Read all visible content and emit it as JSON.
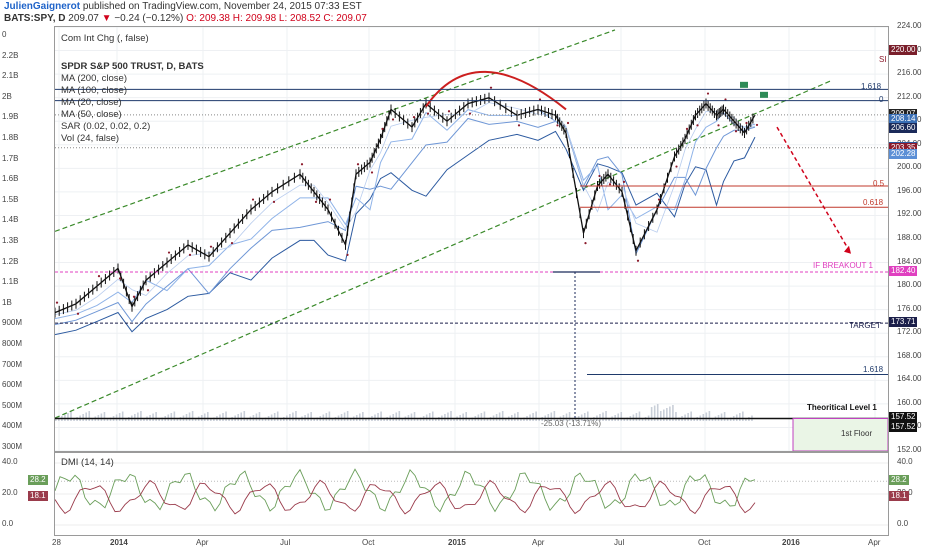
{
  "header": {
    "author": "JulienGaignerot",
    "published": "published on TradingView.com, November 24, 2015 07:33 EST",
    "symbol": "BATS:SPY, D",
    "last": "209.07",
    "change_arrow": "▼",
    "change": "−0.24 (−0.12%)",
    "o": "O: 209.38",
    "h": "H: 209.98",
    "l": "L: 208.52",
    "c": "C: 209.07"
  },
  "legend": {
    "top_indicator": "Com Int Chg (, false)",
    "title": "SPDR S&P 500 TRUST, D, BATS",
    "ma200": "MA (200, close)",
    "ma100": "MA (100, close)",
    "ma20": "MA (20, close)",
    "ma50": "MA (50, close)",
    "sar": "SAR (0.02, 0.02, 0.2)",
    "vol": "Vol (24, false)",
    "dmi": "DMI (14, 14)"
  },
  "annotations": {
    "fib_1618_top": "1.618",
    "fib_0": "0",
    "fib_05": "0.5",
    "fib_0618": "0.618",
    "if_breakout": "IF BREAKOUT",
    "if_breakout_1": "1",
    "target": "TARGET",
    "fib_1618_low": "1.618",
    "theoretical": "Theoritical Level",
    "theoretical_1": "1",
    "measure": "-25.03 (-13.71%)",
    "floor": "1st Floor",
    "si": "SI"
  },
  "price_tags": [
    {
      "label": "220.00",
      "price": 220.0,
      "color": "#7a1f2b"
    },
    {
      "label": "209.07",
      "price": 209.07,
      "color": "#222222"
    },
    {
      "label": "208.14",
      "price": 208.14,
      "color": "#3a6fb5"
    },
    {
      "label": "206.60",
      "price": 206.6,
      "color": "#1b2a5a"
    },
    {
      "label": "203.50",
      "price": 203.5,
      "color": "#2c5aa0"
    },
    {
      "label": "203.35",
      "price": 203.35,
      "color": "#8b1a2b"
    },
    {
      "label": "202.28",
      "price": 202.28,
      "color": "#5b8fd6"
    },
    {
      "label": "182.40",
      "price": 182.4,
      "color": "#e040c0"
    },
    {
      "label": "173.71",
      "price": 173.71,
      "color": "#1b1f4a"
    },
    {
      "label": "157.52",
      "price": 157.52,
      "color": "#111111"
    },
    {
      "label": "157.52",
      "price": 157.52,
      "color": "#111111",
      "offset": 1
    }
  ],
  "osc_tags": [
    {
      "label": "28.2",
      "value": 28.2,
      "color": "#6a9e5a"
    },
    {
      "label": "18.1",
      "value": 18.1,
      "color": "#9a3b4b"
    }
  ],
  "chart_data": {
    "type": "candlestick",
    "title": "SPDR S&P 500 TRUST, D, BATS",
    "x_ticks": [
      "28",
      "2014",
      "Apr",
      "Jul",
      "Oct",
      "2015",
      "Apr",
      "Jul",
      "Oct",
      "2016",
      "Apr"
    ],
    "y_price_ticks": [
      224,
      220,
      216,
      212,
      208,
      204,
      200,
      196,
      192,
      188,
      184,
      180,
      176,
      172,
      168,
      164,
      160,
      156,
      152
    ],
    "y_volume_ticks": [
      "0",
      "2.2B",
      "2.1B",
      "2B",
      "1.9B",
      "1.8B",
      "1.7B",
      "1.6B",
      "1.5B",
      "1.4B",
      "1.3B",
      "1.2B",
      "1.1B",
      "1B",
      "900M",
      "800M",
      "700M",
      "600M",
      "500M",
      "400M",
      "300M"
    ],
    "price_path": [
      [
        0,
        175.5
      ],
      [
        0.03,
        177
      ],
      [
        0.06,
        180
      ],
      [
        0.09,
        183
      ],
      [
        0.11,
        176.5
      ],
      [
        0.13,
        181
      ],
      [
        0.16,
        184
      ],
      [
        0.19,
        187
      ],
      [
        0.22,
        185
      ],
      [
        0.25,
        189
      ],
      [
        0.28,
        193
      ],
      [
        0.31,
        196
      ],
      [
        0.35,
        199
      ],
      [
        0.37,
        196
      ],
      [
        0.39,
        193
      ],
      [
        0.415,
        187
      ],
      [
        0.43,
        199
      ],
      [
        0.45,
        201
      ],
      [
        0.465,
        205
      ],
      [
        0.48,
        210
      ],
      [
        0.51,
        207
      ],
      [
        0.53,
        211
      ],
      [
        0.56,
        208
      ],
      [
        0.59,
        211
      ],
      [
        0.62,
        212
      ],
      [
        0.66,
        209
      ],
      [
        0.69,
        210
      ],
      [
        0.715,
        209
      ],
      [
        0.73,
        206
      ],
      [
        0.755,
        189
      ],
      [
        0.775,
        197
      ],
      [
        0.79,
        199
      ],
      [
        0.81,
        196
      ],
      [
        0.83,
        186
      ],
      [
        0.86,
        193
      ],
      [
        0.885,
        202
      ],
      [
        0.9,
        205
      ],
      [
        0.915,
        209
      ],
      [
        0.93,
        211
      ],
      [
        0.945,
        209
      ],
      [
        0.955,
        210
      ],
      [
        0.97,
        208
      ],
      [
        0.985,
        206
      ],
      [
        1.0,
        209.07
      ]
    ],
    "fib_levels": [
      {
        "label": "1.618",
        "price": 213.4
      },
      {
        "label": "0",
        "price": 211.5
      },
      {
        "label": "0.5",
        "price": 197.0
      },
      {
        "label": "0.618",
        "price": 193.4
      },
      {
        "label": "IF BREAKOUT 1",
        "price": 182.4
      },
      {
        "label": "TARGET",
        "price": 173.71
      },
      {
        "label": "1.618",
        "price": 165.0
      },
      {
        "label": "Theoritical Level 1",
        "price": 157.52
      }
    ],
    "dmi_ticks": [
      40.0,
      20.0,
      0.0
    ],
    "dmi_last": {
      "plus": 28.2,
      "minus": 18.1
    }
  }
}
